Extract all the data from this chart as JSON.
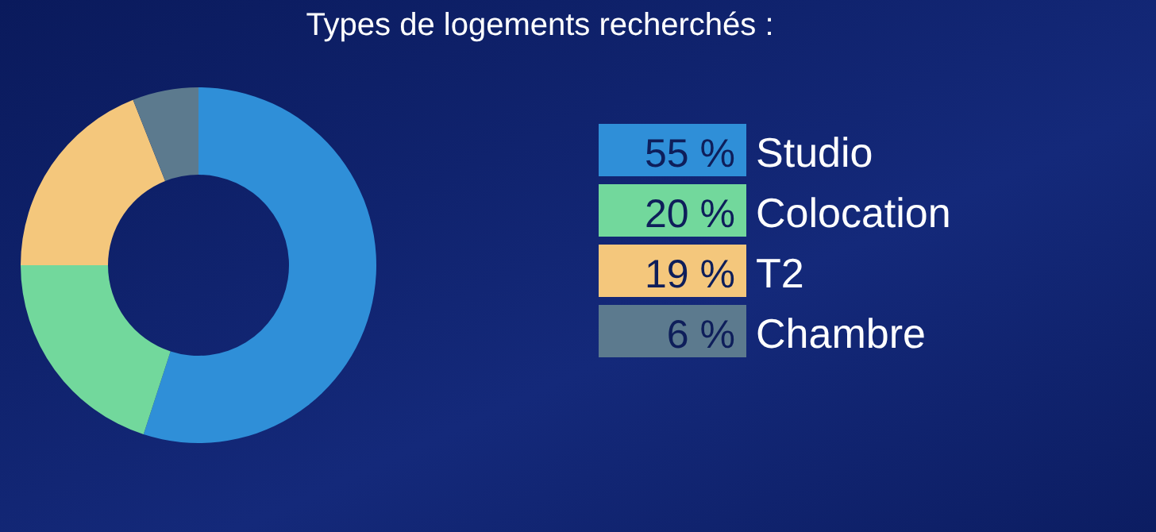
{
  "chart_data": {
    "type": "donut",
    "title": "Types de logements recherchés :",
    "categories": [
      "Studio",
      "Colocation",
      "T2",
      "Chambre"
    ],
    "values": [
      55,
      20,
      19,
      6
    ],
    "colors": [
      "#2f8fd8",
      "#72d89c",
      "#f4c77c",
      "#5c7a8e"
    ],
    "value_labels": [
      "55 %",
      "20 %",
      "19 %",
      "6 %"
    ],
    "legend": "right"
  }
}
